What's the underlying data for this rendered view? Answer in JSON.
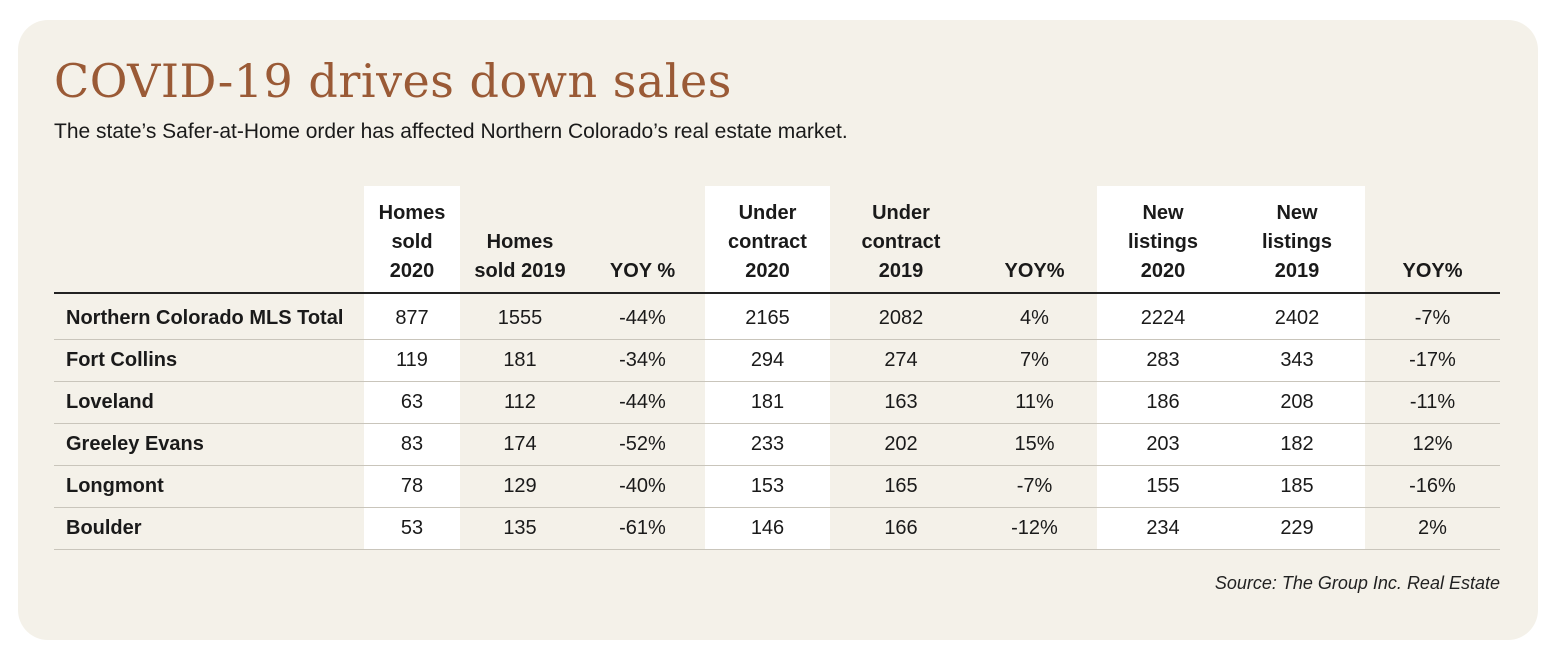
{
  "title": "COVID-19 drives down sales",
  "subtitle": "The state’s Safer-at-Home order has affected Northern Colorado’s real estate market.",
  "source": "Source: The Group Inc. Real Estate",
  "colors": {
    "title": "#9a5a36",
    "background": "#f4f1e9",
    "column_highlight": "#ffffff"
  },
  "chart_data": {
    "type": "table",
    "title": "COVID-19 drives down sales",
    "subtitle": "The state’s Safer-at-Home order has affected Northern Colorado’s real estate market.",
    "columns": [
      "",
      "Homes sold 2020",
      "Homes sold 2019",
      "YOY %",
      "Under contract 2020",
      "Under contract 2019",
      "YOY%",
      "New listings 2020",
      "New listings 2019",
      "YOY%"
    ],
    "header_lines": [
      [
        ""
      ],
      [
        "Homes",
        "sold",
        "2020"
      ],
      [
        "Homes",
        "sold 2019"
      ],
      [
        "YOY %"
      ],
      [
        "Under",
        "contract",
        "2020"
      ],
      [
        "Under",
        "contract",
        "2019"
      ],
      [
        "YOY%"
      ],
      [
        "New",
        "listings",
        "2020"
      ],
      [
        "New",
        "listings",
        "2019"
      ],
      [
        "YOY%"
      ]
    ],
    "rows": [
      {
        "label": "Northern Colorado MLS Total",
        "values": [
          "877",
          "1555",
          "-44%",
          "2165",
          "2082",
          "4%",
          "2224",
          "2402",
          "-7%"
        ]
      },
      {
        "label": "Fort Collins",
        "values": [
          "119",
          "181",
          "-34%",
          "294",
          "274",
          "7%",
          "283",
          "343",
          "-17%"
        ]
      },
      {
        "label": "Loveland",
        "values": [
          "63",
          "112",
          "-44%",
          "181",
          "163",
          "11%",
          "186",
          "208",
          "-11%"
        ]
      },
      {
        "label": "Greeley Evans",
        "values": [
          "83",
          "174",
          "-52%",
          "233",
          "202",
          "15%",
          "203",
          "182",
          "12%"
        ]
      },
      {
        "label": "Longmont",
        "values": [
          "78",
          "129",
          "-40%",
          "153",
          "165",
          "-7%",
          "155",
          "185",
          "-16%"
        ]
      },
      {
        "label": "Boulder",
        "values": [
          "53",
          "135",
          "-61%",
          "146",
          "166",
          "-12%",
          "234",
          "229",
          "2%"
        ]
      }
    ],
    "source": "Source: The Group Inc. Real Estate"
  }
}
